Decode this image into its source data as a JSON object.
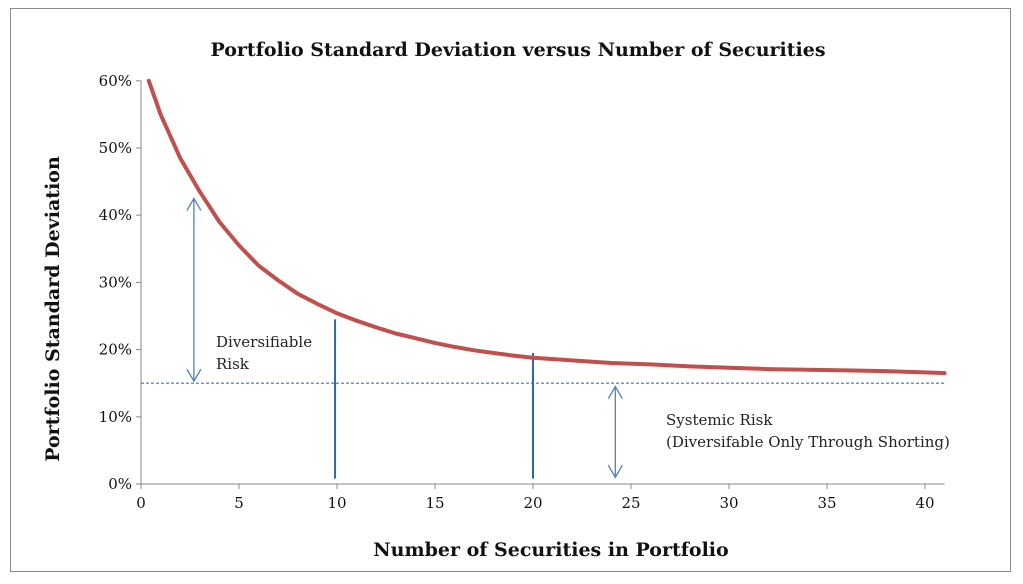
{
  "chart_data": {
    "type": "line",
    "title": "Portfolio Standard Deviation versus Number of Securities",
    "xlabel": "Number of Securities in Portfolio",
    "ylabel": "Portfolio Standard Deviation",
    "xlim": [
      0,
      41
    ],
    "ylim": [
      0,
      60
    ],
    "xticks": [
      "0",
      "5",
      "10",
      "15",
      "20",
      "25",
      "30",
      "35",
      "40"
    ],
    "yticks": [
      "0%",
      "10%",
      "20%",
      "30%",
      "40%",
      "50%",
      "60%"
    ],
    "grid": false,
    "series": [
      {
        "color": "#c0504d",
        "x": [
          0.4,
          1,
          2,
          3,
          4,
          5,
          6,
          7,
          8,
          9,
          10,
          11,
          12,
          13,
          14,
          15,
          16,
          17,
          18,
          19,
          20,
          22,
          24,
          26,
          28,
          30,
          32,
          34,
          36,
          38,
          40,
          41
        ],
        "y": [
          60.0,
          55.0,
          48.5,
          43.5,
          39.0,
          35.5,
          32.5,
          30.3,
          28.3,
          26.8,
          25.4,
          24.3,
          23.3,
          22.4,
          21.7,
          21.0,
          20.4,
          19.9,
          19.5,
          19.1,
          18.8,
          18.4,
          18.0,
          17.8,
          17.5,
          17.3,
          17.1,
          17.0,
          16.9,
          16.8,
          16.6,
          16.5
        ]
      }
    ],
    "systemic_level": 15,
    "annotations": [
      {
        "id": "diversifiable",
        "lines": [
          "Diversifiable",
          "Risk"
        ]
      },
      {
        "id": "systemic",
        "lines": [
          "Systemic  Risk",
          "(Diversifable Only Through Shorting)"
        ]
      }
    ],
    "markers_x": [
      9.9,
      20
    ]
  },
  "colors": {
    "curve": "#c0504d",
    "systemic_line": "#4472c4",
    "arrow": "#4f81bd",
    "vline": "#2e66b0",
    "axis": "#888888"
  }
}
